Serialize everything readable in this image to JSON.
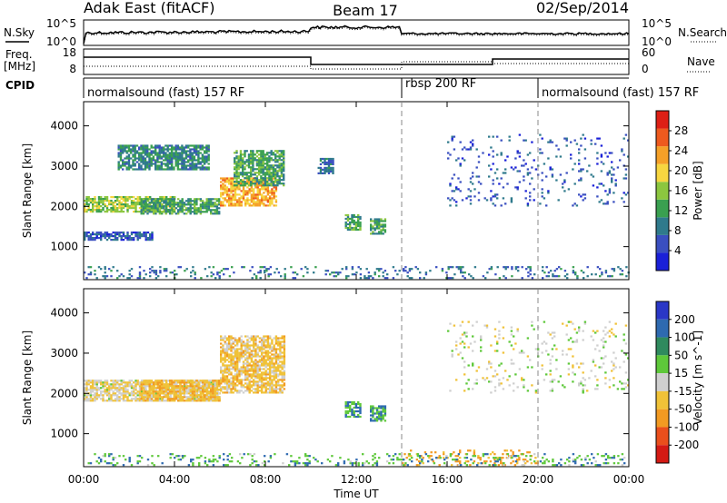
{
  "header": {
    "left": "Adak East (fitACF)",
    "center": "Beam 17",
    "right": "02/Sep/2014"
  },
  "panels": {
    "nsky": {
      "left_label": "N.Sky",
      "right_label": "N.Search",
      "left_ticks": [
        "10^5",
        "10^0"
      ],
      "right_ticks": [
        "10^5",
        "10^0"
      ]
    },
    "freq": {
      "left_label_1": "Freq.",
      "left_label_2": "[MHz]",
      "right_label": "Nave",
      "left_ticks": [
        "18",
        "8"
      ],
      "right_ticks": [
        "60",
        "0"
      ]
    },
    "cpid": {
      "label": "CPID",
      "segments": [
        {
          "text": "normalsound (fast) 157 RF",
          "start": 0,
          "end": 14
        },
        {
          "text": "rbsp 200 RF",
          "start": 14,
          "end": 20
        },
        {
          "text": "normalsound (fast) 157 RF",
          "start": 20,
          "end": 24
        }
      ]
    }
  },
  "colors": {
    "power_scale": [
      "#1a20d8",
      "#3a4fc0",
      "#2f7a8c",
      "#3aa050",
      "#8cc63f",
      "#f7d640",
      "#f5a028",
      "#ee5a1e",
      "#dd1f15"
    ],
    "velocity_scale": [
      "#2a37c7",
      "#2e6ab0",
      "#2f8a5e",
      "#5ec83a",
      "#cfcfcf",
      "#f0c238",
      "#f29a22",
      "#ea4f1c",
      "#d41a14"
    ]
  },
  "chart_data": [
    {
      "type": "heatmap",
      "title": "",
      "xlabel": "Time UT",
      "ylabel": "Slant Range [km]",
      "colorbar_label": "Power [dB]",
      "x_ticks": [
        "00:00",
        "04:00",
        "08:00",
        "12:00",
        "16:00",
        "20:00",
        "00:00"
      ],
      "xlim": [
        0,
        24
      ],
      "ylim": [
        180,
        4600
      ],
      "y_ticks": [
        1000,
        2000,
        3000,
        4000
      ],
      "colorbar_ticks": [
        4,
        8,
        12,
        16,
        20,
        24,
        28
      ],
      "colorbar_range": [
        0,
        32
      ],
      "regions": [
        {
          "t": [
            0,
            4
          ],
          "r": [
            1850,
            2250
          ],
          "v": 16
        },
        {
          "t": [
            2.5,
            6
          ],
          "r": [
            1800,
            2200
          ],
          "v": 12
        },
        {
          "t": [
            6,
            8.5
          ],
          "r": [
            2000,
            2700
          ],
          "v": 22
        },
        {
          "t": [
            6.6,
            8.8
          ],
          "r": [
            2500,
            3400
          ],
          "v": 12
        },
        {
          "t": [
            0,
            3
          ],
          "r": [
            1150,
            1350
          ],
          "v": 6
        },
        {
          "t": [
            1.5,
            5.5
          ],
          "r": [
            2900,
            3500
          ],
          "v": 10
        },
        {
          "t": [
            11.5,
            12.2
          ],
          "r": [
            1400,
            1800
          ],
          "v": 12
        },
        {
          "t": [
            12.6,
            13.3
          ],
          "r": [
            1300,
            1700
          ],
          "v": 12
        },
        {
          "t": [
            10.3,
            11.0
          ],
          "r": [
            2800,
            3200
          ],
          "v": 8
        },
        {
          "t": [
            16,
            24
          ],
          "r": [
            2000,
            3800
          ],
          "v": 6
        },
        {
          "t": [
            0,
            24
          ],
          "r": [
            200,
            500
          ],
          "v": 8
        }
      ]
    },
    {
      "type": "heatmap",
      "title": "",
      "xlabel": "Time UT",
      "ylabel": "Slant Range [km]",
      "colorbar_label": "Velocity [m s^-1]",
      "x_ticks": [
        "00:00",
        "04:00",
        "08:00",
        "12:00",
        "16:00",
        "20:00",
        "00:00"
      ],
      "xlim": [
        0,
        24
      ],
      "ylim": [
        180,
        4600
      ],
      "y_ticks": [
        1000,
        2000,
        3000,
        4000
      ],
      "colorbar_ticks": [
        200,
        100,
        50,
        15,
        -15,
        -50,
        -100,
        -200
      ],
      "regions": [
        {
          "t": [
            0,
            6
          ],
          "r": [
            1800,
            2300
          ],
          "v": -10
        },
        {
          "t": [
            2.5,
            6
          ],
          "r": [
            1800,
            2300
          ],
          "v": -40
        },
        {
          "t": [
            6,
            8.8
          ],
          "r": [
            2000,
            3400
          ],
          "v": -30
        },
        {
          "t": [
            11.5,
            12.2
          ],
          "r": [
            1400,
            1800
          ],
          "v": 50
        },
        {
          "t": [
            12.6,
            13.3
          ],
          "r": [
            1300,
            1700
          ],
          "v": 50
        },
        {
          "t": [
            14,
            20
          ],
          "r": [
            200,
            600
          ],
          "v": -60
        },
        {
          "t": [
            16,
            24
          ],
          "r": [
            2000,
            3800
          ],
          "v": 0
        },
        {
          "t": [
            0,
            24
          ],
          "r": [
            200,
            500
          ],
          "v": 40
        }
      ]
    }
  ]
}
